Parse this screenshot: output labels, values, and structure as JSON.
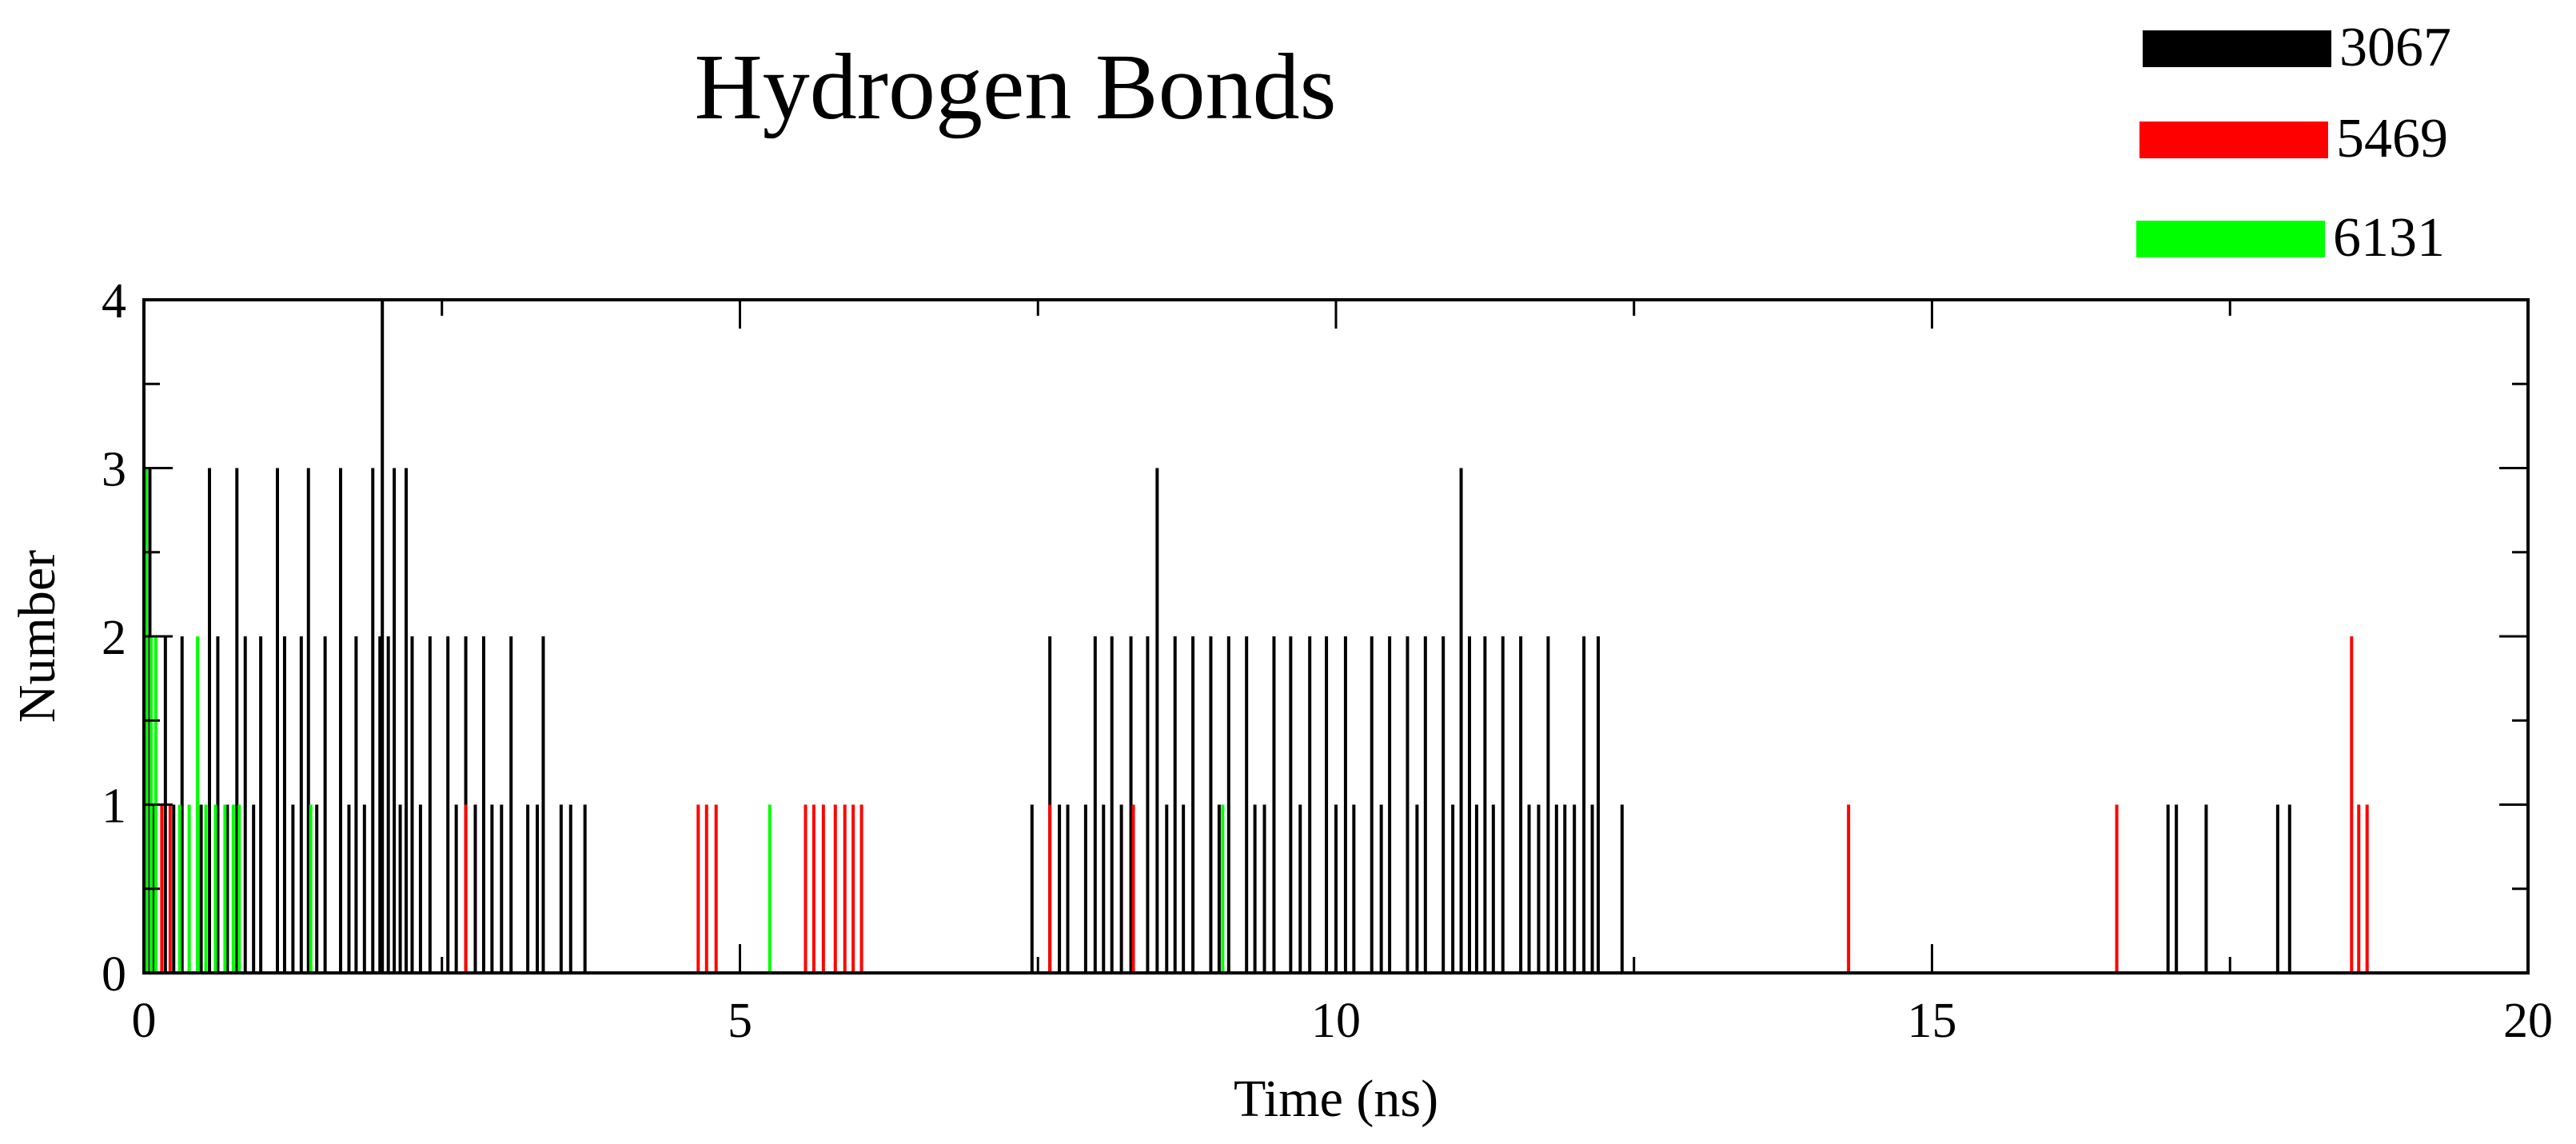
{
  "chart_data": {
    "type": "line",
    "title": "Hydrogen Bonds",
    "xlabel": "Time (ns)",
    "ylabel": "Number",
    "xlim": [
      0,
      20
    ],
    "ylim": [
      0,
      4
    ],
    "xticks": [
      0,
      5,
      10,
      15,
      20
    ],
    "yticks": [
      0,
      1,
      2,
      3,
      4
    ],
    "grid": false,
    "legend_position": "top-right",
    "series": [
      {
        "name": "3067",
        "color": "#000000",
        "x": [
          0.0,
          0.02,
          0.05,
          0.08,
          0.12,
          0.18,
          0.25,
          0.32,
          0.4,
          0.48,
          0.55,
          0.62,
          0.7,
          0.78,
          0.85,
          0.92,
          0.98,
          1.05,
          1.12,
          1.18,
          1.25,
          1.32,
          1.38,
          1.45,
          1.52,
          1.58,
          1.65,
          1.72,
          1.78,
          1.85,
          1.92,
          1.98,
          2.0,
          2.05,
          2.1,
          2.15,
          2.2,
          2.25,
          2.32,
          2.4,
          2.48,
          2.55,
          2.62,
          2.7,
          2.78,
          2.85,
          2.92,
          3.0,
          3.08,
          3.15,
          3.22,
          3.3,
          3.35,
          3.42,
          3.5,
          3.58,
          3.65,
          3.7,
          7.45,
          7.52,
          7.6,
          7.68,
          7.75,
          7.82,
          7.9,
          7.98,
          8.05,
          8.12,
          8.2,
          8.28,
          8.35,
          8.42,
          8.5,
          8.58,
          8.65,
          8.72,
          8.8,
          8.88,
          8.95,
          9.02,
          9.1,
          9.18,
          9.25,
          9.32,
          9.4,
          9.48,
          9.55,
          9.62,
          9.7,
          9.78,
          9.85,
          9.92,
          10.0,
          10.08,
          10.15,
          10.22,
          10.3,
          10.38,
          10.45,
          10.52,
          10.6,
          10.68,
          10.75,
          10.82,
          10.9,
          10.98,
          11.05,
          11.12,
          11.18,
          11.25,
          11.32,
          11.4,
          11.48,
          11.55,
          11.62,
          11.7,
          11.78,
          11.85,
          11.92,
          12.0,
          12.08,
          12.15,
          12.2,
          12.4,
          12.6,
          16.98,
          17.05,
          17.3,
          17.8,
          17.9,
          18.0
        ],
        "y": [
          4,
          2,
          3,
          1,
          0,
          2,
          1,
          2,
          0,
          1,
          3,
          2,
          1,
          3,
          2,
          1,
          2,
          0,
          3,
          2,
          1,
          2,
          3,
          1,
          2,
          0,
          3,
          1,
          2,
          1,
          3,
          2,
          4,
          2,
          3,
          1,
          3,
          2,
          1,
          2,
          0,
          2,
          1,
          2,
          1,
          2,
          1,
          1,
          2,
          0,
          1,
          1,
          2,
          0,
          1,
          1,
          0,
          1,
          1,
          0,
          2,
          1,
          1,
          0,
          1,
          2,
          1,
          2,
          1,
          2,
          0,
          2,
          3,
          1,
          2,
          1,
          2,
          0,
          2,
          1,
          2,
          0,
          2,
          1,
          1,
          2,
          0,
          2,
          1,
          2,
          0,
          2,
          1,
          2,
          1,
          0,
          2,
          1,
          2,
          0,
          2,
          1,
          2,
          0,
          2,
          1,
          3,
          2,
          1,
          2,
          1,
          2,
          0,
          2,
          1,
          1,
          2,
          1,
          1,
          1,
          2,
          1,
          2,
          1,
          0,
          1,
          1,
          1,
          0,
          1,
          1
        ]
      },
      {
        "name": "5469",
        "color": "#ff0000",
        "x": [
          0.15,
          0.22,
          2.7,
          4.65,
          4.72,
          4.8,
          5.55,
          5.62,
          5.7,
          5.8,
          5.88,
          5.95,
          6.02,
          7.6,
          8.3,
          14.3,
          16.55,
          18.52,
          18.58,
          18.65
        ],
        "y": [
          1,
          1,
          1,
          1,
          1,
          1,
          1,
          1,
          1,
          1,
          1,
          1,
          1,
          1,
          1,
          1,
          1,
          2,
          1,
          1
        ]
      },
      {
        "name": "6131",
        "color": "#00ff00",
        "x": [
          0.02,
          0.06,
          0.1,
          0.3,
          0.38,
          0.45,
          0.52,
          0.6,
          0.68,
          0.75,
          0.8,
          1.4,
          5.25,
          9.05
        ],
        "y": [
          3,
          2,
          2,
          1,
          1,
          2,
          1,
          1,
          1,
          1,
          1,
          1,
          1,
          1
        ]
      }
    ]
  }
}
